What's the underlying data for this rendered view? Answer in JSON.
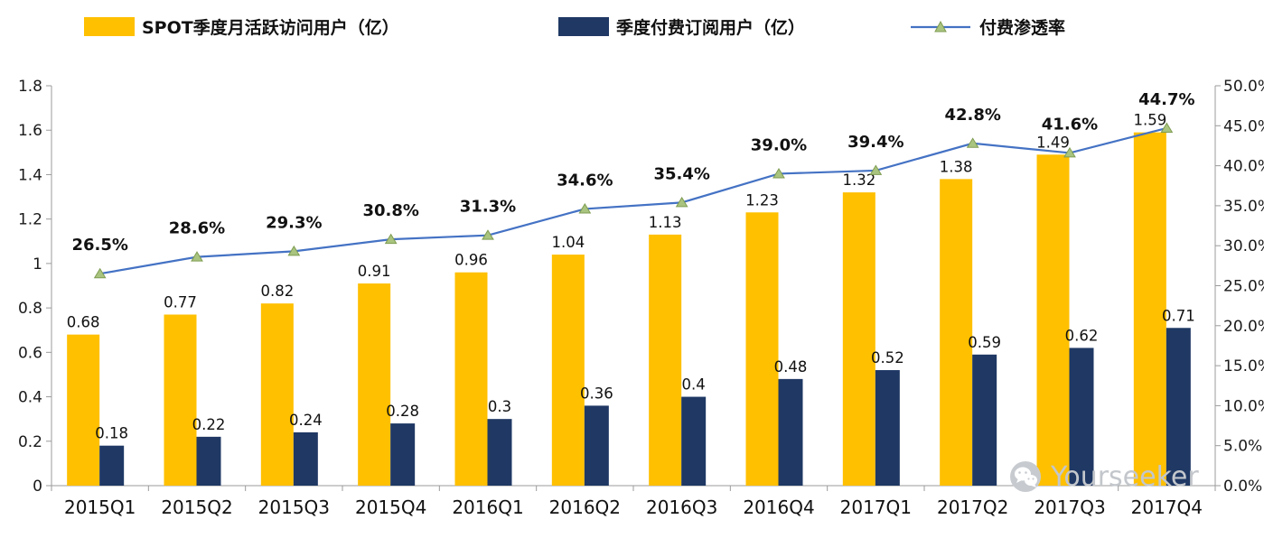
{
  "legend": {
    "items": [
      {
        "label": "SPOT季度月活跃访问用户（亿）",
        "type": "bar",
        "color": "#FFC000"
      },
      {
        "label": "季度付费订阅用户（亿）",
        "type": "bar",
        "color": "#1F3864"
      },
      {
        "label": "付费渗透率",
        "type": "line",
        "color": "#4472C4",
        "marker_color": "#A9C47F",
        "marker_edge": "#7F9C52"
      }
    ]
  },
  "watermark": {
    "text": "Yourseeker"
  },
  "chart_data": {
    "type": "bar+line combo",
    "categories": [
      "2015Q1",
      "2015Q2",
      "2015Q3",
      "2015Q4",
      "2016Q1",
      "2016Q2",
      "2016Q3",
      "2016Q4",
      "2017Q1",
      "2017Q2",
      "2017Q3",
      "2017Q4"
    ],
    "series": [
      {
        "name": "SPOT季度月活跃访问用户（亿）",
        "type": "bar",
        "axis": "left",
        "color": "#FFC000",
        "values": [
          0.68,
          0.77,
          0.82,
          0.91,
          0.96,
          1.04,
          1.13,
          1.23,
          1.32,
          1.38,
          1.49,
          1.59
        ],
        "labels": [
          "0.68",
          "0.77",
          "0.82",
          "0.91",
          "0.96",
          "1.04",
          "1.13",
          "1.23",
          "1.32",
          "1.38",
          "1.49",
          "1.59"
        ]
      },
      {
        "name": "季度付费订阅用户（亿）",
        "type": "bar",
        "axis": "left",
        "color": "#1F3864",
        "values": [
          0.18,
          0.22,
          0.24,
          0.28,
          0.3,
          0.36,
          0.4,
          0.48,
          0.52,
          0.59,
          0.62,
          0.71
        ],
        "labels": [
          "0.18",
          "0.22",
          "0.24",
          "0.28",
          "0.3",
          "0.36",
          "0.4",
          "0.48",
          "0.52",
          "0.59",
          "0.62",
          "0.71"
        ]
      },
      {
        "name": "付费渗透率",
        "type": "line",
        "axis": "right",
        "color": "#4472C4",
        "marker_color": "#A9C47F",
        "marker_edge": "#7F9C52",
        "values": [
          26.5,
          28.6,
          29.3,
          30.8,
          31.3,
          34.6,
          35.4,
          39.0,
          39.4,
          42.8,
          41.6,
          44.7
        ],
        "labels": [
          "26.5%",
          "28.6%",
          "29.3%",
          "30.8%",
          "31.3%",
          "34.6%",
          "35.4%",
          "39.0%",
          "39.4%",
          "42.8%",
          "41.6%",
          "44.7%"
        ]
      }
    ],
    "left_axis": {
      "min": 0,
      "max": 1.8,
      "ticks": [
        "0",
        "0.2",
        "0.4",
        "0.6",
        "0.8",
        "1",
        "1.2",
        "1.4",
        "1.6",
        "1.8"
      ]
    },
    "right_axis": {
      "min": 0,
      "max": 50,
      "ticks": [
        "0.0%",
        "5.0%",
        "10.0%",
        "15.0%",
        "20.0%",
        "25.0%",
        "30.0%",
        "35.0%",
        "40.0%",
        "45.0%",
        "50.0%"
      ]
    },
    "grid": false,
    "legend_position": "top"
  }
}
